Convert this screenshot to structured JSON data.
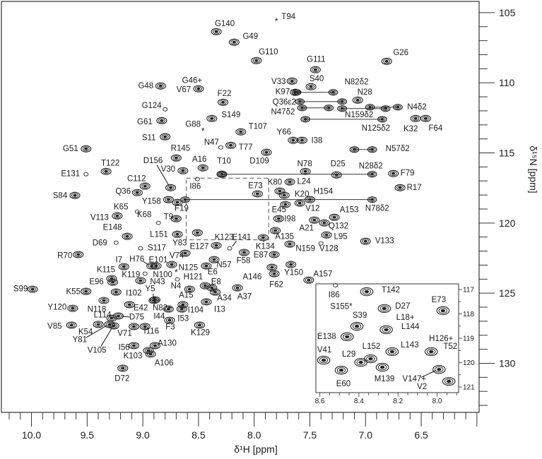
{
  "chart_data": [
    {
      "type": "scatter",
      "xlabel": "δ¹H [ppm]",
      "ylabel": "δ¹⁵N [ppm]",
      "xlim": [
        10.27,
        5.98
      ],
      "ylim": [
        104.2,
        133.5
      ],
      "x_reversed": true,
      "y_reversed": true,
      "x_ticks": [
        "10.0",
        "9.5",
        "9.0",
        "8.5",
        "8.0",
        "7.5",
        "7.0",
        "6.5"
      ],
      "y_ticks": [
        "105",
        "110",
        "115",
        "120",
        "125",
        "130"
      ],
      "grid": false,
      "zoom_box": {
        "H": [
          8.61,
          7.87
        ],
        "N": [
          116.8,
          121.2
        ]
      },
      "peaks": [
        {
          "label": "G140",
          "H": 8.34,
          "N": 106.36
        },
        {
          "label": "G49",
          "H": 8.18,
          "N": 107.11
        },
        {
          "label": "G110",
          "H": 7.98,
          "N": 108.42
        },
        {
          "label": "G48",
          "H": 8.84,
          "N": 110.23
        },
        {
          "label": "G46+",
          "H": 8.5,
          "N": 110.43
        },
        {
          "label": "V67",
          "H": 8.5,
          "N": 110.43,
          "marker": "none"
        },
        {
          "label": "F22",
          "H": 8.28,
          "N": 111.39
        },
        {
          "label": "G124",
          "H": 8.8,
          "N": 111.89,
          "marker": "circle"
        },
        {
          "label": "G61",
          "H": 8.83,
          "N": 112.7
        },
        {
          "label": "S149",
          "H": 8.38,
          "N": 112.55
        },
        {
          "label": "G88",
          "H": 8.46,
          "N": 113.4,
          "marker": "star"
        },
        {
          "label": "T107",
          "H": 8.12,
          "N": 113.5
        },
        {
          "label": "S11",
          "H": 8.8,
          "N": 113.85
        },
        {
          "label": "N47",
          "H": 8.3,
          "N": 114.61,
          "marker": "circle"
        },
        {
          "label": "T77",
          "H": 8.21,
          "N": 114.46
        },
        {
          "label": "G51",
          "H": 9.51,
          "N": 114.71
        },
        {
          "label": "R145",
          "H": 8.7,
          "N": 115.36
        },
        {
          "label": "A16",
          "H": 8.46,
          "N": 116.07
        },
        {
          "label": "T10",
          "H": 8.29,
          "N": 116.52
        },
        {
          "label": "D156",
          "H": 8.75,
          "N": 117.48
        },
        {
          "label": "V30",
          "H": 8.64,
          "N": 116.27
        },
        {
          "label": "T122",
          "H": 9.33,
          "N": 116.32
        },
        {
          "label": "E131",
          "H": 9.51,
          "N": 116.52,
          "marker": "circle"
        },
        {
          "label": "C112",
          "H": 8.98,
          "N": 117.37
        },
        {
          "label": "Q36",
          "H": 9.05,
          "N": 117.83
        },
        {
          "label": "S84",
          "H": 9.61,
          "N": 118.03
        },
        {
          "label": "Y158",
          "H": 8.77,
          "N": 118.33
        },
        {
          "label": "F19",
          "H": 8.69,
          "N": 118.53
        },
        {
          "label": "T9",
          "H": 8.7,
          "N": 119.69
        },
        {
          "label": "K65",
          "H": 9.05,
          "N": 119.18,
          "marker": "circle"
        },
        {
          "label": "V113",
          "H": 9.23,
          "N": 119.49
        },
        {
          "label": "K68",
          "H": 8.86,
          "N": 119.99,
          "marker": "circle"
        },
        {
          "label": "E148",
          "H": 9.14,
          "N": 120.95
        },
        {
          "label": "L151",
          "H": 8.69,
          "N": 120.8
        },
        {
          "label": "D69",
          "H": 9.24,
          "N": 121.4,
          "marker": "circle"
        },
        {
          "label": "S117",
          "H": 9.02,
          "N": 121.8,
          "marker": "circle"
        },
        {
          "label": "R70",
          "H": 9.58,
          "N": 122.25
        },
        {
          "label": "I7",
          "H": 9.17,
          "N": 123.11
        },
        {
          "label": "H76",
          "H": 8.92,
          "N": 123.06
        },
        {
          "label": "E101",
          "H": 8.88,
          "N": 123.06
        },
        {
          "label": "V74",
          "H": 8.74,
          "N": 122.96
        },
        {
          "label": "N125",
          "H": 8.7,
          "N": 123.46,
          "marker": "star"
        },
        {
          "label": "E6",
          "H": 8.43,
          "N": 123.06
        },
        {
          "label": "N57",
          "H": 8.36,
          "N": 122.61
        },
        {
          "label": "K115",
          "H": 9.28,
          "N": 123.96
        },
        {
          "label": "K119",
          "H": 8.98,
          "N": 123.61,
          "marker": "circle"
        },
        {
          "label": "N100",
          "H": 8.93,
          "N": 123.66,
          "marker": "none"
        },
        {
          "label": "E96",
          "H": 9.27,
          "N": 124.22
        },
        {
          "label": "N43",
          "H": 9.02,
          "N": 124.11
        },
        {
          "label": "N4",
          "H": 8.69,
          "N": 124.02,
          "marker": "circle"
        },
        {
          "label": "H121",
          "H": 8.44,
          "N": 124.47
        },
        {
          "label": "E8",
          "H": 8.38,
          "N": 124.62
        },
        {
          "label": "S99",
          "H": 9.99,
          "N": 124.72
        },
        {
          "label": "K55",
          "H": 9.51,
          "N": 124.87
        },
        {
          "label": "I102",
          "H": 9.24,
          "N": 124.92
        },
        {
          "label": "Y5",
          "H": 8.89,
          "N": 125.47
        },
        {
          "label": "A15",
          "H": 8.58,
          "N": 124.72
        },
        {
          "label": "A34",
          "H": 8.35,
          "N": 124.92
        },
        {
          "label": "A37",
          "H": 8.15,
          "N": 124.62
        },
        {
          "label": "Y120",
          "H": 9.63,
          "N": 126.08
        },
        {
          "label": "N118",
          "H": 9.35,
          "N": 125.52
        },
        {
          "label": "E42",
          "H": 9.12,
          "N": 125.82
        },
        {
          "label": "N82+",
          "H": 8.9,
          "N": 125.52
        },
        {
          "label": "I104",
          "H": 8.64,
          "N": 125.82
        },
        {
          "label": "I13",
          "H": 8.43,
          "N": 125.62
        },
        {
          "label": "L114",
          "H": 9.28,
          "N": 126.78
        },
        {
          "label": "D75",
          "H": 9.22,
          "N": 126.63
        },
        {
          "label": "I44",
          "H": 8.77,
          "N": 126.13
        },
        {
          "label": "I53",
          "H": 8.65,
          "N": 126.13
        },
        {
          "label": "V85",
          "H": 9.64,
          "N": 127.28
        },
        {
          "label": "K54",
          "H": 9.4,
          "N": 127.23
        },
        {
          "label": "F3",
          "H": 8.76,
          "N": 126.93
        },
        {
          "label": "K129",
          "H": 8.49,
          "N": 127.28
        },
        {
          "label": "V71",
          "H": 9.08,
          "N": 127.38
        },
        {
          "label": "I116",
          "H": 8.98,
          "N": 127.38
        },
        {
          "label": "Y81",
          "H": 9.3,
          "N": 127.23
        },
        {
          "label": "V105",
          "H": 9.26,
          "N": 127.33
        },
        {
          "label": "I56",
          "H": 9.08,
          "N": 128.74
        },
        {
          "label": "A130",
          "H": 8.89,
          "N": 128.74
        },
        {
          "label": "K103",
          "H": 8.95,
          "N": 129.09
        },
        {
          "label": "A106",
          "H": 8.93,
          "N": 129.34
        },
        {
          "label": "D72",
          "H": 9.18,
          "N": 130.35
        },
        {
          "label": "T94",
          "H": 7.8,
          "N": 105.55,
          "marker": "star"
        },
        {
          "label": "G111",
          "H": 7.45,
          "N": 109.07
        },
        {
          "label": "G26",
          "H": 6.81,
          "N": 108.47
        },
        {
          "label": "V33",
          "H": 7.66,
          "N": 109.88
        },
        {
          "label": "S40",
          "H": 7.49,
          "N": 110.28
        },
        {
          "label": "K97",
          "H": 7.63,
          "N": 110.68
        },
        {
          "label": "N28",
          "H": 7.07,
          "N": 111.24
        },
        {
          "label": "K32",
          "H": 6.55,
          "N": 112.55
        },
        {
          "label": "F64",
          "H": 6.46,
          "N": 112.55
        },
        {
          "label": "Y66",
          "H": 7.65,
          "N": 114.1
        },
        {
          "label": "I38",
          "H": 7.57,
          "N": 114.1
        },
        {
          "label": "D109",
          "H": 7.89,
          "N": 114.96
        },
        {
          "label": "N78",
          "H": 7.54,
          "N": 116.32
        },
        {
          "label": "D25",
          "H": 7.26,
          "N": 116.57
        },
        {
          "label": "F79",
          "H": 6.75,
          "N": 116.47
        },
        {
          "label": "R17",
          "H": 6.69,
          "N": 117.48
        },
        {
          "label": "L24",
          "H": 7.68,
          "N": 117.07
        },
        {
          "label": "K80",
          "H": 7.77,
          "N": 117.72
        },
        {
          "label": "K20",
          "H": 7.73,
          "N": 118.02
        },
        {
          "label": "H154",
          "H": 7.5,
          "N": 118.33
        },
        {
          "label": "E45",
          "H": 7.72,
          "N": 118.68
        },
        {
          "label": "V12",
          "H": 7.59,
          "N": 118.58
        },
        {
          "label": "A153",
          "H": 7.28,
          "N": 119.59
        },
        {
          "label": "I98",
          "H": 7.78,
          "N": 119.69
        },
        {
          "label": "A21",
          "H": 7.46,
          "N": 119.79
        },
        {
          "label": "Q132",
          "H": 7.37,
          "N": 119.99
        },
        {
          "label": "L95",
          "H": 7.35,
          "N": 120.85
        },
        {
          "label": "V133",
          "H": 7.0,
          "N": 121.3
        },
        {
          "label": "A135",
          "H": 7.81,
          "N": 120.54
        },
        {
          "label": "N159",
          "H": 7.68,
          "N": 121.5
        },
        {
          "label": "V128",
          "H": 7.4,
          "N": 121.45,
          "marker": "circle"
        },
        {
          "label": "K134",
          "H": 7.92,
          "N": 121.04
        },
        {
          "label": "E87",
          "H": 7.82,
          "N": 122.25
        },
        {
          "label": "K123",
          "H": 8.34,
          "N": 121.6
        },
        {
          "label": "E141",
          "H": 8.22,
          "N": 121.8,
          "marker": "circle"
        },
        {
          "label": "E127",
          "H": 8.62,
          "N": 122.15
        },
        {
          "label": "Y83",
          "H": 8.51,
          "N": 120.69
        },
        {
          "label": "F58",
          "H": 8.09,
          "N": 122.1
        },
        {
          "label": "A146",
          "H": 7.84,
          "N": 123.16
        },
        {
          "label": "F62",
          "H": 7.82,
          "N": 123.61
        },
        {
          "label": "Y150",
          "H": 7.67,
          "N": 122.96
        },
        {
          "label": "A157",
          "H": 7.51,
          "N": 124.07
        },
        {
          "label": "E73",
          "H": 7.97,
          "N": 117.92
        },
        {
          "label": "I86",
          "H": 8.51,
          "N": 116.87,
          "marker": "circle"
        }
      ],
      "sidechain_nh2": [
        {
          "label": "N82δ2",
          "H": [
            7.29,
            7.62
          ],
          "N": 110.68
        },
        {
          "label": "Q36ε2",
          "H": [
            7.59,
            7.21
          ],
          "N": 111.34
        },
        {
          "label": "N47δ2",
          "H": [
            7.57,
            7.33
          ],
          "N": 111.79
        },
        {
          "label": "N159δ2",
          "H": [
            7.21,
            6.82
          ],
          "N": 111.84
        },
        {
          "label": "N4δ2",
          "H": [
            6.71,
            6.96
          ],
          "N": 111.74
        },
        {
          "label": "N125δ2",
          "H": [
            6.85,
            7.54
          ],
          "N": 112.6
        },
        {
          "label": "N57δ2",
          "H": [
            6.94,
            7.1
          ],
          "N": 114.76
        },
        {
          "label": "N28δ2",
          "H": [
            6.94,
            8.29
          ],
          "N": 116.52
        },
        {
          "label": "N78δ2",
          "H": [
            6.94,
            8.62
          ],
          "N": 118.33
        }
      ]
    },
    {
      "type": "scatter",
      "inset": true,
      "xlim": [
        8.62,
        7.89
      ],
      "ylim": [
        116.77,
        121.23
      ],
      "x_reversed": true,
      "y_reversed": true,
      "x_ticks": [
        "8.6",
        "8.4",
        "8.2",
        "8.0"
      ],
      "y_ticks": [
        "117",
        "118",
        "119",
        "120",
        "121"
      ],
      "peaks": [
        {
          "label": "T142",
          "H": 8.36,
          "N": 117.09
        },
        {
          "label": "I86",
          "H": 8.52,
          "N": 116.83,
          "marker": "circle"
        },
        {
          "label": "S155*",
          "H": 8.49,
          "N": 117.71,
          "marker": "none"
        },
        {
          "label": "D27",
          "H": 8.27,
          "N": 117.78
        },
        {
          "label": "S39",
          "H": 8.41,
          "N": 118.51
        },
        {
          "label": "L18+",
          "H": 8.26,
          "N": 118.65,
          "marker": "none"
        },
        {
          "label": "L144",
          "H": 8.26,
          "N": 118.65
        },
        {
          "label": "E138",
          "H": 8.46,
          "N": 118.94
        },
        {
          "label": "E73",
          "H": 7.97,
          "N": 117.87
        },
        {
          "label": "H126+",
          "H": 8.03,
          "N": 119.55
        },
        {
          "label": "T52",
          "H": 8.03,
          "N": 119.55,
          "marker": "none"
        },
        {
          "label": "L143",
          "H": 8.23,
          "N": 119.55
        },
        {
          "label": "L152",
          "H": 8.34,
          "N": 119.84
        },
        {
          "label": "L29",
          "H": 8.39,
          "N": 119.99
        },
        {
          "label": "V41",
          "H": 8.58,
          "N": 119.9
        },
        {
          "label": "E60",
          "H": 8.49,
          "N": 120.31
        },
        {
          "label": "M139",
          "H": 8.28,
          "N": 120.19
        },
        {
          "label": "V147+",
          "H": 7.99,
          "N": 120.28
        },
        {
          "label": "V2",
          "H": 7.94,
          "N": 120.77
        }
      ]
    }
  ]
}
